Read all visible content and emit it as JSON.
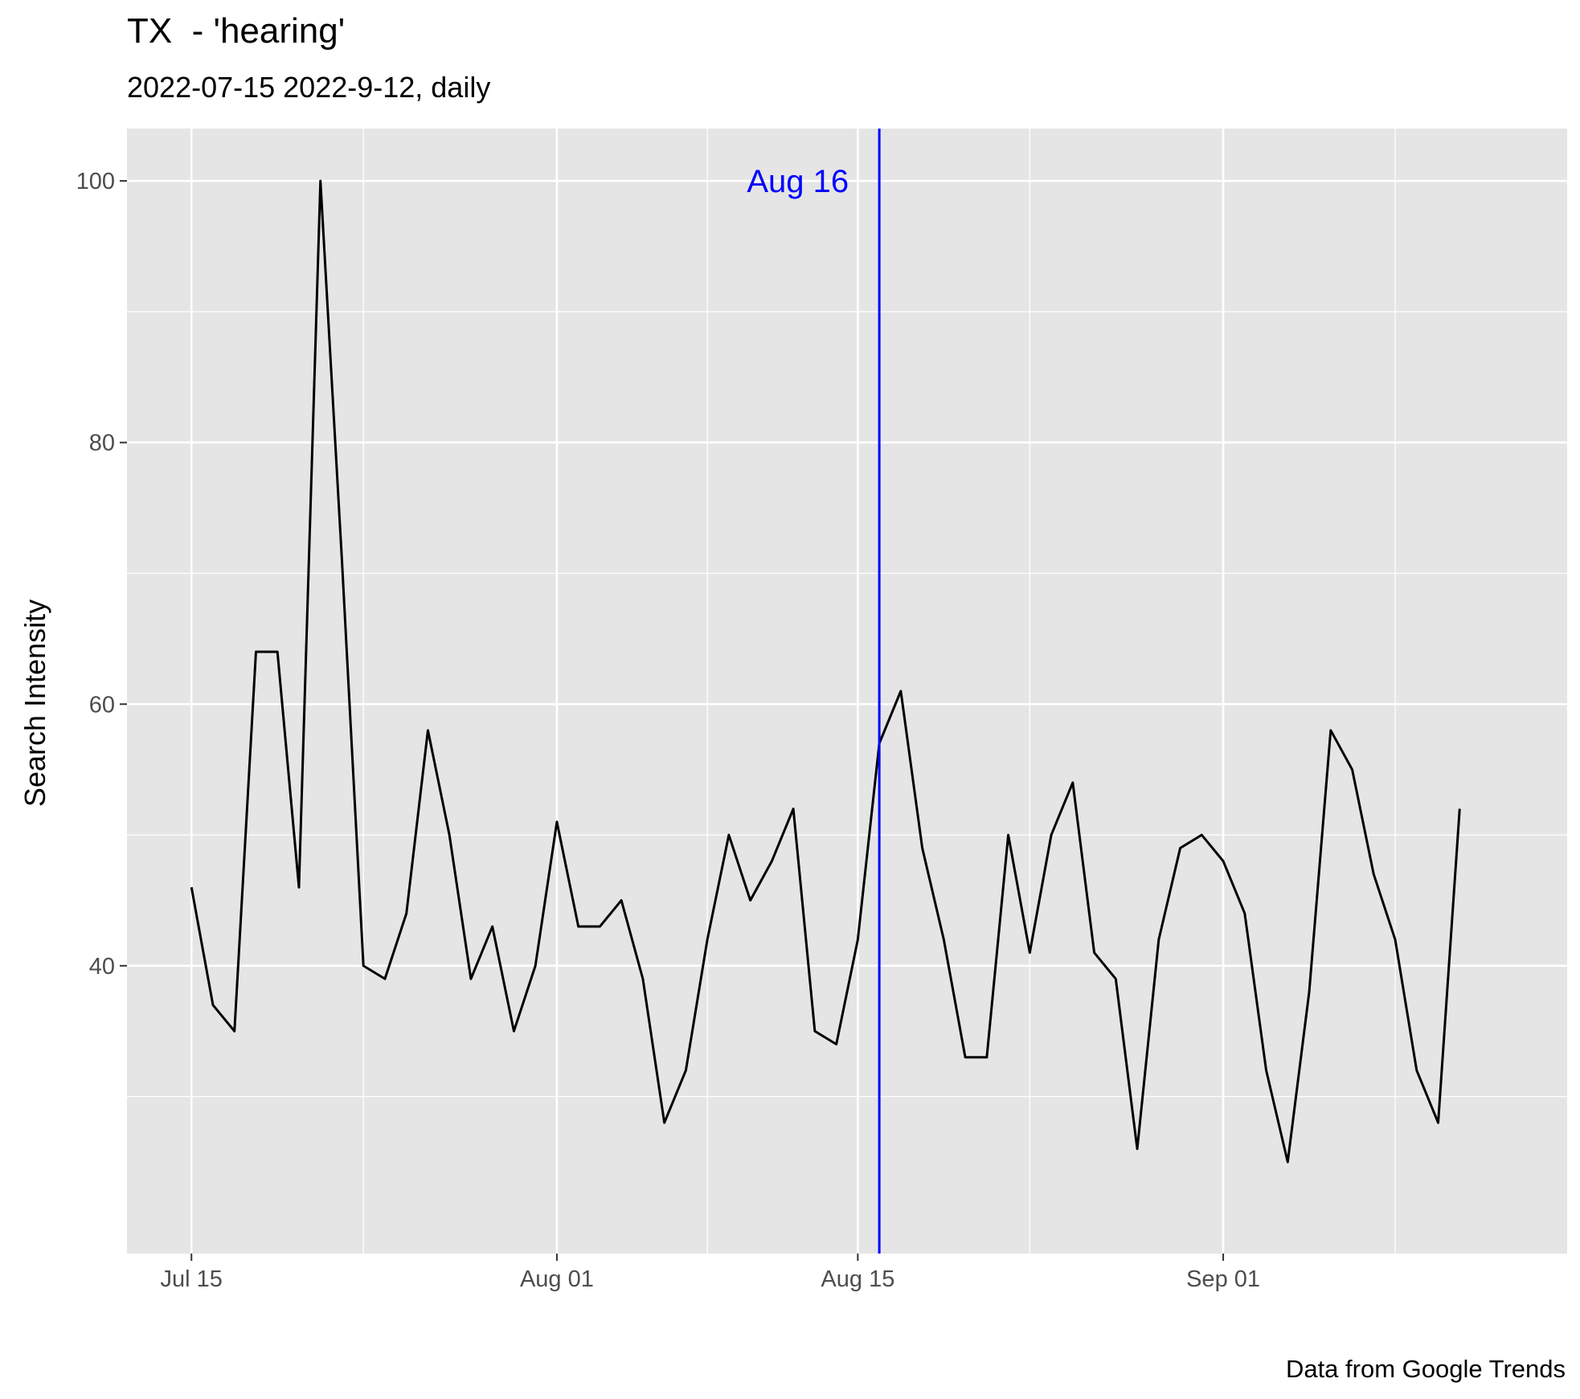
{
  "chart_data": {
    "type": "line",
    "title": "TX  - 'hearing'",
    "subtitle": "2022-07-15 2022-9-12, daily",
    "xlabel": "",
    "ylabel": "Search Intensity",
    "caption": "Data from Google Trends",
    "x_start": "2022-07-15",
    "xlim": [
      "2022-07-12",
      "2022-09-17"
    ],
    "ylim": [
      18,
      104
    ],
    "x_ticks": [
      {
        "date": "2022-07-15",
        "label": "Jul 15"
      },
      {
        "date": "2022-08-01",
        "label": "Aug 01"
      },
      {
        "date": "2022-08-15",
        "label": "Aug 15"
      },
      {
        "date": "2022-09-01",
        "label": "Sep 01"
      }
    ],
    "x_minor_ticks": [
      "2022-07-23",
      "2022-08-08",
      "2022-08-23",
      "2022-09-09"
    ],
    "y_ticks": [
      40,
      60,
      80,
      100
    ],
    "y_minor_ticks": [
      30,
      50,
      70,
      90
    ],
    "grid": true,
    "series": [
      {
        "color": "#000000",
        "values": [
          46,
          37,
          35,
          64,
          64,
          46,
          100,
          71,
          40,
          39,
          44,
          58,
          50,
          39,
          43,
          35,
          40,
          51,
          43,
          43,
          45,
          39,
          28,
          32,
          42,
          50,
          45,
          48,
          52,
          35,
          34,
          42,
          57,
          61,
          49,
          42,
          33,
          33,
          50,
          41,
          50,
          54,
          41,
          39,
          26,
          42,
          49,
          50,
          48,
          44,
          32,
          25,
          38,
          58,
          55,
          47,
          42,
          32,
          28,
          52
        ]
      }
    ],
    "annotations": [
      {
        "type": "vline",
        "date": "2022-08-16",
        "label": "Aug 16",
        "label_y": 100,
        "color": "#0000ff"
      }
    ]
  }
}
